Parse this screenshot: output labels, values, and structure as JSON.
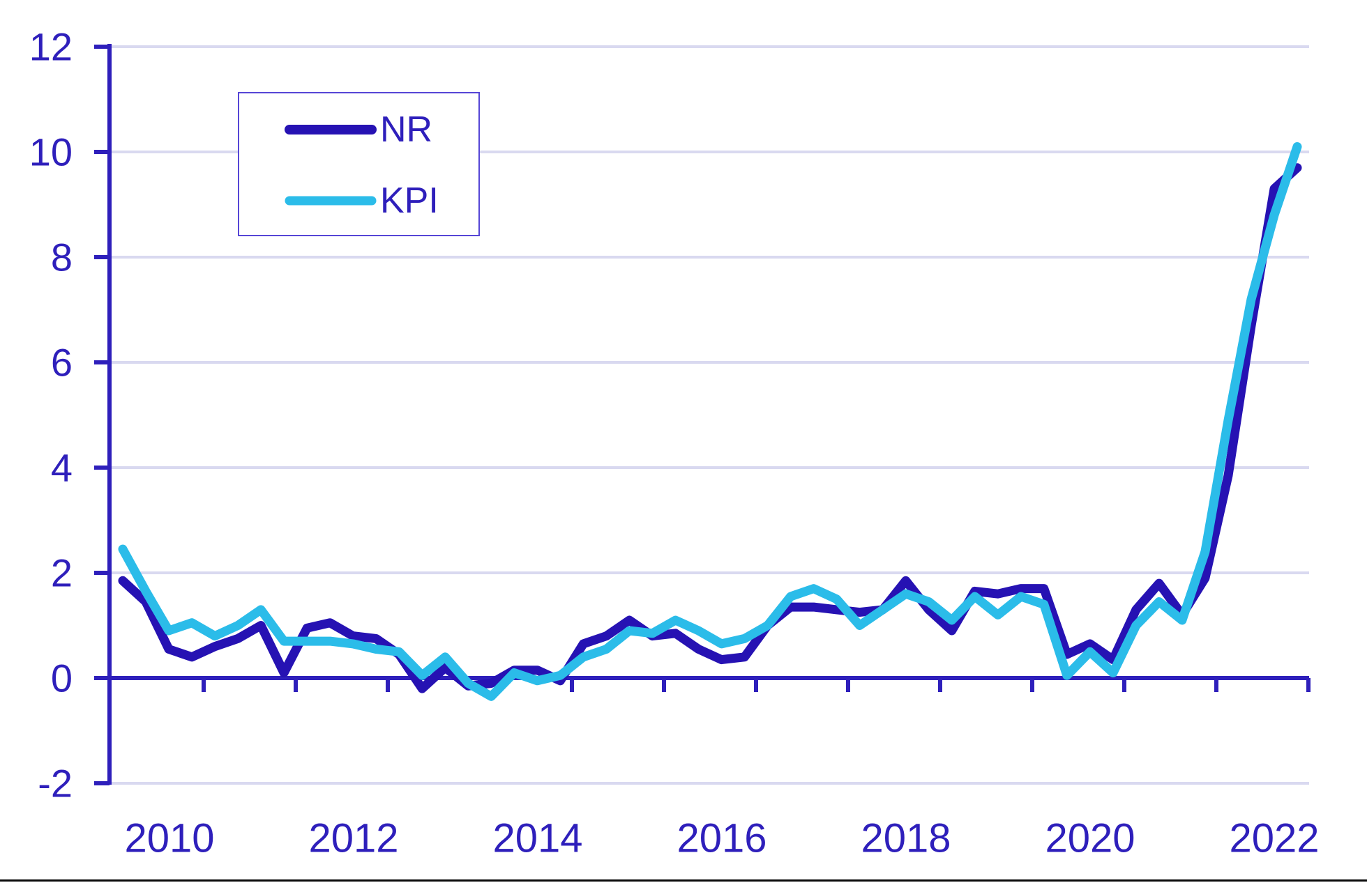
{
  "colors": {
    "nr_line": "#2612B3",
    "kpi_line": "#2BBCE9",
    "axis": "#2E1FBB",
    "tick_label": "#2E1FBB",
    "gridline": "#D9D9F0",
    "legend_border": "#5646D6",
    "background": "#FFFFFF",
    "bottom_rule": "#0A0A0A"
  },
  "legend": {
    "items": [
      {
        "label": "NR"
      },
      {
        "label": "KPI"
      }
    ]
  },
  "chart_data": {
    "type": "line",
    "title": "",
    "xlabel": "",
    "ylabel": "",
    "frequency": "quarterly",
    "grid": "horizontal",
    "legend_position": "top-left",
    "ylim": [
      -2,
      12
    ],
    "ytick_step": 2,
    "yticks": [
      12,
      10,
      8,
      6,
      4,
      2,
      0,
      -2
    ],
    "x_year_labels": [
      "2010",
      "2012",
      "2014",
      "2016",
      "2018",
      "2020",
      "2022"
    ],
    "categories": [
      "2009Q3",
      "2009Q4",
      "2010Q1",
      "2010Q2",
      "2010Q3",
      "2010Q4",
      "2011Q1",
      "2011Q2",
      "2011Q3",
      "2011Q4",
      "2012Q1",
      "2012Q2",
      "2012Q3",
      "2012Q4",
      "2013Q1",
      "2013Q2",
      "2013Q3",
      "2013Q4",
      "2014Q1",
      "2014Q2",
      "2014Q3",
      "2014Q4",
      "2015Q1",
      "2015Q2",
      "2015Q3",
      "2015Q4",
      "2016Q1",
      "2016Q2",
      "2016Q3",
      "2016Q4",
      "2017Q1",
      "2017Q2",
      "2017Q3",
      "2017Q4",
      "2018Q1",
      "2018Q2",
      "2018Q3",
      "2018Q4",
      "2019Q1",
      "2019Q2",
      "2019Q3",
      "2019Q4",
      "2020Q1",
      "2020Q2",
      "2020Q3",
      "2020Q4",
      "2021Q1",
      "2021Q2",
      "2021Q3",
      "2021Q4",
      "2022Q1",
      "2022Q2"
    ],
    "series": [
      {
        "name": "NR",
        "color": "#2612B3",
        "values": [
          1.85,
          1.45,
          0.55,
          0.4,
          0.6,
          0.75,
          1.0,
          0.1,
          0.95,
          1.05,
          0.8,
          0.75,
          0.45,
          -0.2,
          0.2,
          -0.15,
          -0.1,
          0.15,
          0.15,
          -0.05,
          0.65,
          0.8,
          1.1,
          0.8,
          0.85,
          0.55,
          0.35,
          0.4,
          1.0,
          1.35,
          1.35,
          1.3,
          1.25,
          1.3,
          1.85,
          1.3,
          0.9,
          1.65,
          1.6,
          1.7,
          1.7,
          0.45,
          0.65,
          0.35,
          1.3,
          1.8,
          1.2,
          1.9,
          3.85,
          6.7,
          9.3,
          9.7
        ]
      },
      {
        "name": "KPI",
        "color": "#2BBCE9",
        "values": [
          2.45,
          1.65,
          0.9,
          1.05,
          0.8,
          1.0,
          1.3,
          0.7,
          0.7,
          0.7,
          0.65,
          0.55,
          0.5,
          0.05,
          0.4,
          -0.1,
          -0.35,
          0.1,
          -0.05,
          0.05,
          0.4,
          0.55,
          0.9,
          0.85,
          1.1,
          0.9,
          0.65,
          0.75,
          1.0,
          1.55,
          1.7,
          1.5,
          1.0,
          1.3,
          1.6,
          1.45,
          1.1,
          1.55,
          1.2,
          1.55,
          1.4,
          0.05,
          0.5,
          0.1,
          1.0,
          1.45,
          1.1,
          2.4,
          4.9,
          7.2,
          8.8,
          10.1
        ]
      }
    ]
  }
}
